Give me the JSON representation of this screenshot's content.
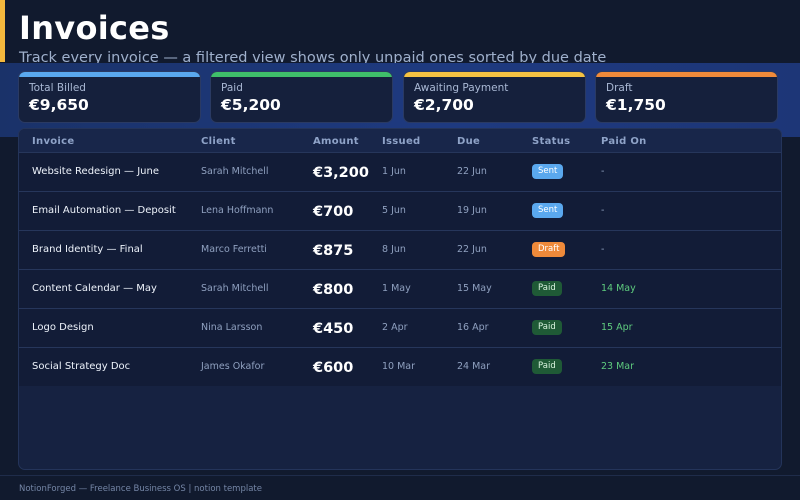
{
  "header": {
    "title": "Invoices",
    "subtitle": "Track every invoice — a filtered view shows only unpaid ones sorted by due date"
  },
  "colors": {
    "accent": "#f5b83d",
    "total": "#5aa8ee",
    "paid": "#3fbf6a",
    "awaiting": "#f5c242",
    "draft": "#ef8a3a"
  },
  "summary": [
    {
      "label": "Total Billed",
      "value": "€9,650",
      "color": "#5aa8ee"
    },
    {
      "label": "Paid",
      "value": "€5,200",
      "color": "#3fbf6a"
    },
    {
      "label": "Awaiting Payment",
      "value": "€2,700",
      "color": "#f5c242"
    },
    {
      "label": "Draft",
      "value": "€1,750",
      "color": "#ef8a3a"
    }
  ],
  "table": {
    "columns": [
      "Invoice",
      "Client",
      "Amount",
      "Issued",
      "Due",
      "Status",
      "Paid On"
    ],
    "rows": [
      {
        "invoice": "Website Redesign — June",
        "client": "Sarah Mitchell",
        "amount": "€3,200",
        "issued": "1 Jun",
        "due": "22 Jun",
        "status": "Sent",
        "paid_on": "-"
      },
      {
        "invoice": "Email Automation — Deposit",
        "client": "Lena Hoffmann",
        "amount": "€700",
        "issued": "5 Jun",
        "due": "19 Jun",
        "status": "Sent",
        "paid_on": "-"
      },
      {
        "invoice": "Brand Identity — Final",
        "client": "Marco Ferretti",
        "amount": "€875",
        "issued": "8 Jun",
        "due": "22 Jun",
        "status": "Draft",
        "paid_on": "-"
      },
      {
        "invoice": "Content Calendar — May",
        "client": "Sarah Mitchell",
        "amount": "€800",
        "issued": "1 May",
        "due": "15 May",
        "status": "Paid",
        "paid_on": "14 May"
      },
      {
        "invoice": "Logo Design",
        "client": "Nina Larsson",
        "amount": "€450",
        "issued": "2 Apr",
        "due": "16 Apr",
        "status": "Paid",
        "paid_on": "15 Apr"
      },
      {
        "invoice": "Social Strategy Doc",
        "client": "James Okafor",
        "amount": "€600",
        "issued": "10 Mar",
        "due": "24 Mar",
        "status": "Paid",
        "paid_on": "23 Mar"
      }
    ]
  },
  "footer": {
    "text": "NotionForged — Freelance Business OS  |  notion template"
  }
}
